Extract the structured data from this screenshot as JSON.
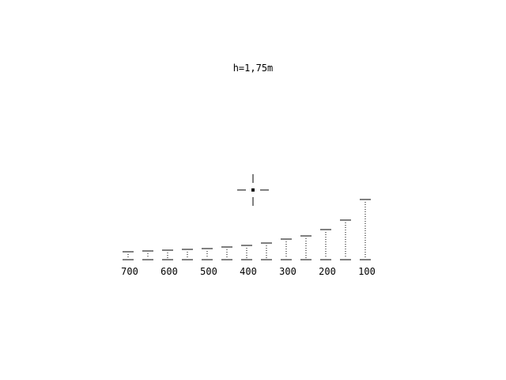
{
  "header": {
    "height_text": "h=1,75m"
  },
  "scale": {
    "labels": [
      "700",
      "600",
      "500",
      "400",
      "300",
      "200",
      "100"
    ],
    "marks": 13
  },
  "colors": {
    "foreground": "#000000",
    "background": "#ffffff"
  },
  "icons": {
    "crosshair": "crosshair-icon"
  }
}
